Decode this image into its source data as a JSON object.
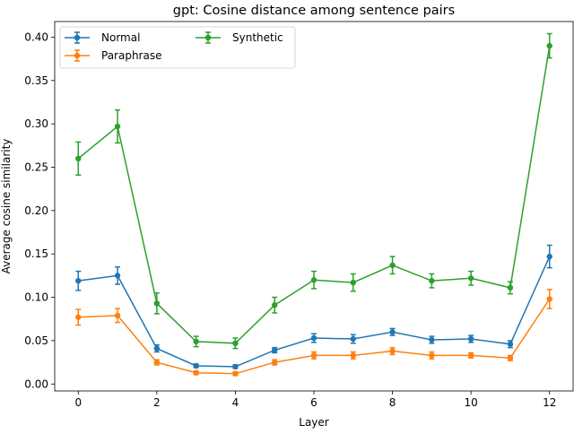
{
  "chart_data": {
    "type": "line",
    "title": "gpt: Cosine distance among sentence pairs",
    "xlabel": "Layer",
    "ylabel": "Average cosine similarity",
    "xlim": [
      -0.6,
      12.6
    ],
    "ylim": [
      -0.008,
      0.418
    ],
    "xticks": [
      0,
      2,
      4,
      6,
      8,
      10,
      12
    ],
    "yticks": [
      0.0,
      0.05,
      0.1,
      0.15,
      0.2,
      0.25,
      0.3,
      0.35,
      0.4
    ],
    "ytick_labels": [
      "0.00",
      "0.05",
      "0.10",
      "0.15",
      "0.20",
      "0.25",
      "0.30",
      "0.35",
      "0.40"
    ],
    "x": [
      0,
      1,
      2,
      3,
      4,
      5,
      6,
      7,
      8,
      9,
      10,
      11,
      12
    ],
    "grid": false,
    "legend_position": "top-left",
    "series": [
      {
        "name": "Normal",
        "color": "#1f77b4",
        "values": [
          0.119,
          0.125,
          0.041,
          0.021,
          0.02,
          0.039,
          0.053,
          0.052,
          0.06,
          0.051,
          0.052,
          0.046,
          0.147
        ],
        "errors": [
          0.011,
          0.01,
          0.004,
          0.002,
          0.002,
          0.003,
          0.005,
          0.005,
          0.004,
          0.004,
          0.004,
          0.004,
          0.013
        ]
      },
      {
        "name": "Paraphrase",
        "color": "#ff7f0e",
        "values": [
          0.077,
          0.079,
          0.025,
          0.013,
          0.012,
          0.025,
          0.033,
          0.033,
          0.038,
          0.033,
          0.033,
          0.03,
          0.098
        ],
        "errors": [
          0.009,
          0.008,
          0.003,
          0.002,
          0.002,
          0.003,
          0.004,
          0.004,
          0.004,
          0.004,
          0.003,
          0.003,
          0.011
        ]
      },
      {
        "name": "Synthetic",
        "color": "#2ca02c",
        "values": [
          0.26,
          0.297,
          0.093,
          0.049,
          0.047,
          0.091,
          0.12,
          0.117,
          0.137,
          0.119,
          0.122,
          0.111,
          0.39
        ],
        "errors": [
          0.019,
          0.019,
          0.012,
          0.006,
          0.006,
          0.009,
          0.01,
          0.01,
          0.01,
          0.008,
          0.008,
          0.007,
          0.014
        ]
      }
    ]
  }
}
